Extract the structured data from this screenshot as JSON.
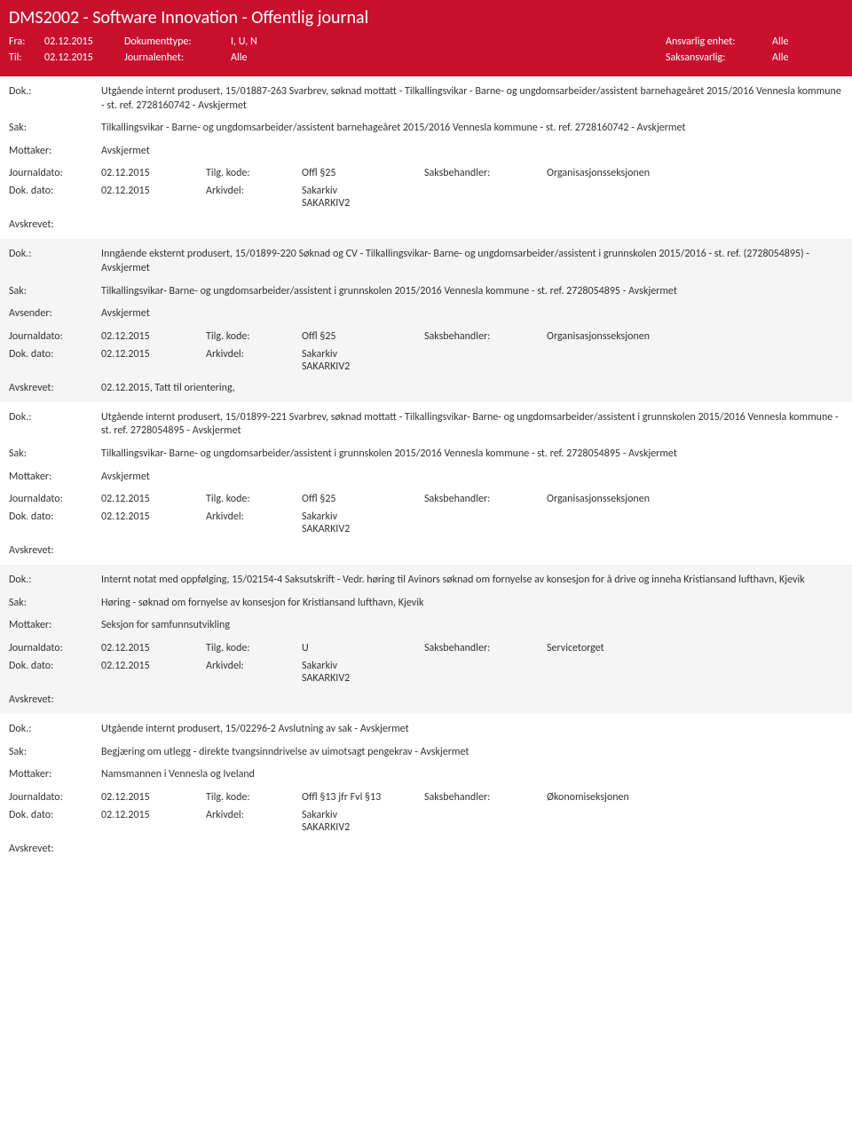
{
  "colors": {
    "header_bg": "#c8102e",
    "header_text": "#ffffff",
    "gray_bg": "#f5f5f5",
    "text": "#333333"
  },
  "header": {
    "title": "DMS2002 - Software Innovation - Offentlig journal",
    "fra_label": "Fra:",
    "fra_value": "02.12.2015",
    "til_label": "Til:",
    "til_value": "02.12.2015",
    "doctype_label": "Dokumenttype:",
    "doctype_value": "I, U, N",
    "journalenhet_label": "Journalenhet:",
    "journalenhet_value": "Alle",
    "ansvarlig_label": "Ansvarlig enhet:",
    "ansvarlig_value": "Alle",
    "saksansvarlig_label": "Saksansvarlig:",
    "saksansvarlig_value": "Alle"
  },
  "labels": {
    "dok": "Dok.:",
    "sak": "Sak:",
    "mottaker": "Mottaker:",
    "avsender": "Avsender:",
    "journaldato": "Journaldato:",
    "dokdato": "Dok. dato:",
    "tilgkode": "Tilg. kode:",
    "arkivdel": "Arkivdel:",
    "saksbehandler": "Saksbehandler:",
    "avskrevet": "Avskrevet:"
  },
  "records": [
    {
      "dok": "Utgående internt produsert, 15/01887-263 Svarbrev, søknad mottatt - Tilkallingsvikar - Barne- og ungdomsarbeider/assistent barnehageåret 2015/2016 Vennesla kommune - st. ref. 2728160742 - Avskjermet",
      "sak": "Tilkallingsvikar - Barne- og ungdomsarbeider/assistent barnehageåret 2015/2016 Vennesla kommune - st. ref. 2728160742 - Avskjermet",
      "party_label": "Mottaker:",
      "party_value": "Avskjermet",
      "journaldato": "02.12.2015",
      "tilgkode": "Offl §25",
      "saksbehandler": "Organisasjonsseksjonen",
      "dokdato": "02.12.2015",
      "arkivdel": "Sakarkiv\nSAKARKIV2",
      "avskrevet": ""
    },
    {
      "dok": "Inngående eksternt produsert, 15/01899-220 Søknad og CV - Tilkallingsvikar- Barne- og ungdomsarbeider/assistent i grunnskolen 2015/2016 - st. ref. (2728054895) - Avskjermet",
      "sak": "Tilkallingsvikar- Barne- og ungdomsarbeider/assistent i grunnskolen 2015/2016 Vennesla kommune - st. ref. 2728054895 - Avskjermet",
      "party_label": "Avsender:",
      "party_value": "Avskjermet",
      "journaldato": "02.12.2015",
      "tilgkode": "Offl §25",
      "saksbehandler": "Organisasjonsseksjonen",
      "dokdato": "02.12.2015",
      "arkivdel": "Sakarkiv\nSAKARKIV2",
      "avskrevet": "02.12.2015, Tatt til orientering,"
    },
    {
      "dok": "Utgående internt produsert, 15/01899-221 Svarbrev, søknad mottatt - Tilkallingsvikar- Barne- og ungdomsarbeider/assistent i grunnskolen 2015/2016 Vennesla kommune - st. ref. 2728054895 - Avskjermet",
      "sak": "Tilkallingsvikar- Barne- og ungdomsarbeider/assistent i grunnskolen 2015/2016 Vennesla kommune - st. ref. 2728054895 - Avskjermet",
      "party_label": "Mottaker:",
      "party_value": "Avskjermet",
      "journaldato": "02.12.2015",
      "tilgkode": "Offl §25",
      "saksbehandler": "Organisasjonsseksjonen",
      "dokdato": "02.12.2015",
      "arkivdel": "Sakarkiv\nSAKARKIV2",
      "avskrevet": ""
    },
    {
      "dok": "Internt notat med oppfølging, 15/02154-4 Saksutskrift - Vedr. høring til Avinors søknad om fornyelse av konsesjon for å drive og inneha Kristiansand lufthavn, Kjevik",
      "sak": "Høring - søknad om fornyelse av konsesjon for Kristiansand lufthavn, Kjevik",
      "party_label": "Mottaker:",
      "party_value": "Seksjon for samfunnsutvikling",
      "journaldato": "02.12.2015",
      "tilgkode": "U",
      "saksbehandler": "Servicetorget",
      "dokdato": "02.12.2015",
      "arkivdel": "Sakarkiv\nSAKARKIV2",
      "avskrevet": ""
    },
    {
      "dok": "Utgående internt produsert, 15/02296-2 Avslutning av sak - Avskjermet",
      "sak": "Begjæring om utlegg - direkte tvangsinndrivelse av uimotsagt pengekrav - Avskjermet",
      "party_label": "Mottaker:",
      "party_value": "Namsmannen i Vennesla og Iveland",
      "journaldato": "02.12.2015",
      "tilgkode": "Offl §13 jfr Fvl §13",
      "saksbehandler": "Økonomiseksjonen",
      "dokdato": "02.12.2015",
      "arkivdel": "Sakarkiv\nSAKARKIV2",
      "avskrevet": ""
    }
  ]
}
